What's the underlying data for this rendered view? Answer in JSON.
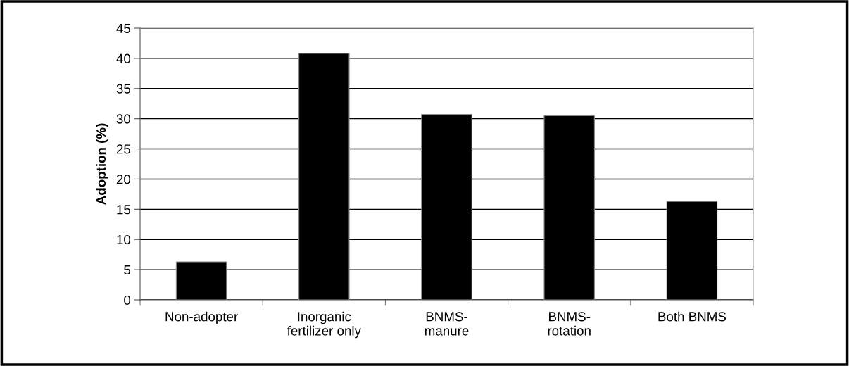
{
  "chart_data": {
    "type": "bar",
    "categories": [
      "Non-adopter",
      "Inorganic\nfertilizer only",
      "BNMS-\nmanure",
      "BNMS-\nrotation",
      "Both BNMS"
    ],
    "values": [
      6.3,
      40.8,
      30.7,
      30.5,
      16.3
    ],
    "color": "#000000",
    "ylabel": "Adoption (%)",
    "ylim": [
      0,
      45
    ],
    "yticks": [
      0,
      5,
      10,
      15,
      20,
      25,
      30,
      35,
      40,
      45
    ],
    "grid": "y",
    "legend": false
  }
}
